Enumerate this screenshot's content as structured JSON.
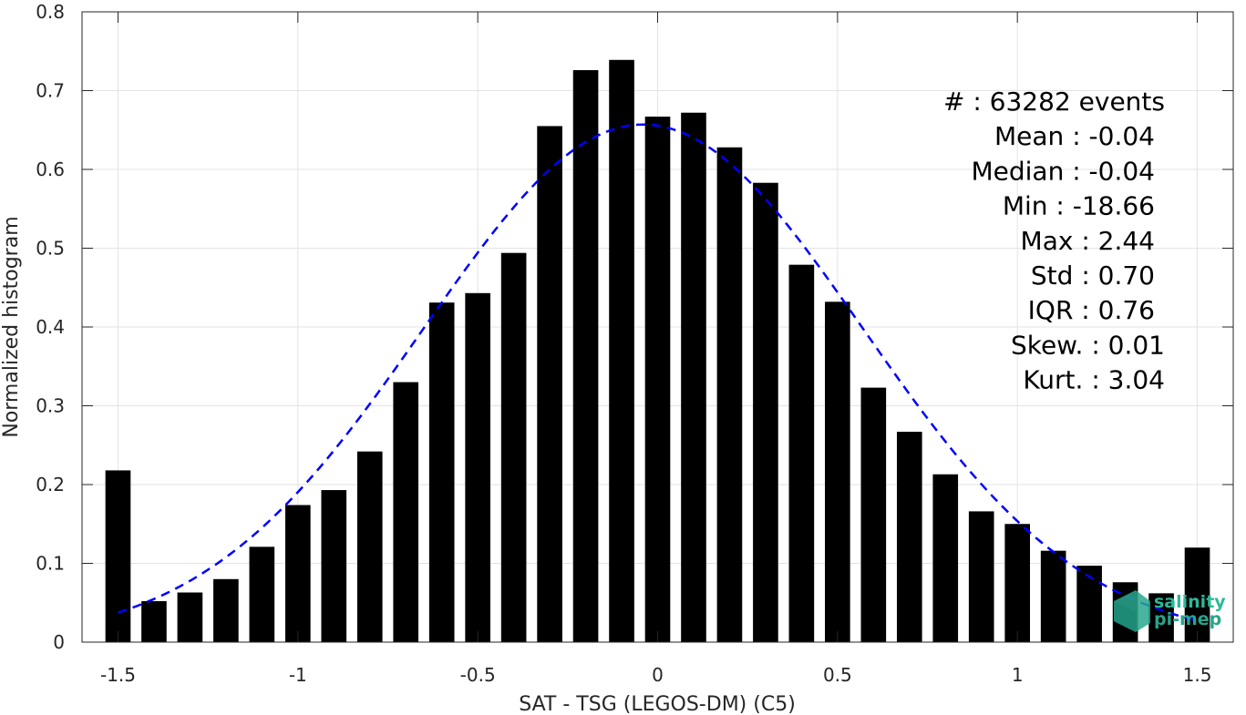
{
  "chart_data": {
    "type": "bar",
    "xlabel": "SAT - TSG (LEGOS-DM) (C5)",
    "ylabel": "Normalized histogram",
    "xlim": [
      -1.6,
      1.6
    ],
    "ylim": [
      0,
      0.8
    ],
    "xticks": [
      "-1.5",
      "-1",
      "-0.5",
      "0",
      "0.5",
      "1",
      "1.5"
    ],
    "yticks": [
      "0",
      "0.1",
      "0.2",
      "0.3",
      "0.4",
      "0.5",
      "0.6",
      "0.7",
      "0.8"
    ],
    "grid": true,
    "bin_width": 0.1,
    "bar_color": "#000000",
    "fit_color": "#0000ff",
    "bars": {
      "x": [
        -1.5,
        -1.4,
        -1.3,
        -1.2,
        -1.1,
        -1.0,
        -0.9,
        -0.8,
        -0.7,
        -0.6,
        -0.5,
        -0.4,
        -0.3,
        -0.2,
        -0.1,
        0.0,
        0.1,
        0.2,
        0.3,
        0.4,
        0.5,
        0.6,
        0.7,
        0.8,
        0.9,
        1.0,
        1.1,
        1.2,
        1.3,
        1.4,
        1.5
      ],
      "values": [
        0.218,
        0.052,
        0.063,
        0.08,
        0.121,
        0.174,
        0.193,
        0.242,
        0.33,
        0.431,
        0.443,
        0.494,
        0.655,
        0.726,
        0.739,
        0.667,
        0.672,
        0.628,
        0.583,
        0.479,
        0.432,
        0.323,
        0.267,
        0.213,
        0.166,
        0.15,
        0.116,
        0.097,
        0.076,
        0.062,
        0.12
      ]
    },
    "fit": {
      "type": "gaussian",
      "mean": -0.04,
      "std": 0.61,
      "peak": 0.657,
      "x_range": [
        -1.5,
        1.5
      ],
      "style": "dashed"
    },
    "stats": [
      {
        "label": "#  : 63282 events"
      },
      {
        "label": "Mean : -0.04"
      },
      {
        "label": "Median : -0.04"
      },
      {
        "label": "Min : -18.66"
      },
      {
        "label": "Max : 2.44"
      },
      {
        "label": "Std : 0.70"
      },
      {
        "label": "IQR : 0.76"
      },
      {
        "label": "Skew. : 0.01"
      },
      {
        "label": "Kurt. : 3.04"
      }
    ]
  },
  "logo": {
    "line1": "salinity",
    "line2": "pi-mep"
  }
}
